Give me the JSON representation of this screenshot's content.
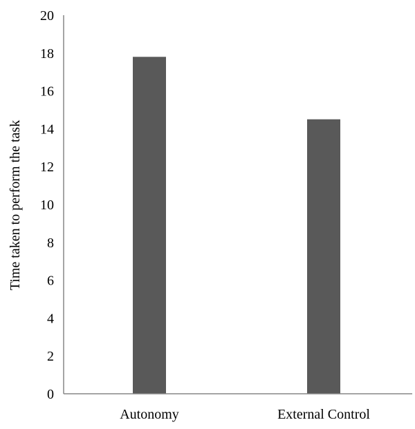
{
  "chart_data": {
    "type": "bar",
    "title": "",
    "xlabel": "",
    "ylabel": "Time taken to perform the task",
    "categories": [
      "Autonomy",
      "External Control"
    ],
    "values": [
      17.8,
      14.5
    ],
    "ylim": [
      0,
      20
    ],
    "yticks": [
      0,
      2,
      4,
      6,
      8,
      10,
      12,
      14,
      16,
      18,
      20
    ],
    "grid": false,
    "legend": "none",
    "bar_color": "#595959",
    "axis_color": "#868686"
  }
}
